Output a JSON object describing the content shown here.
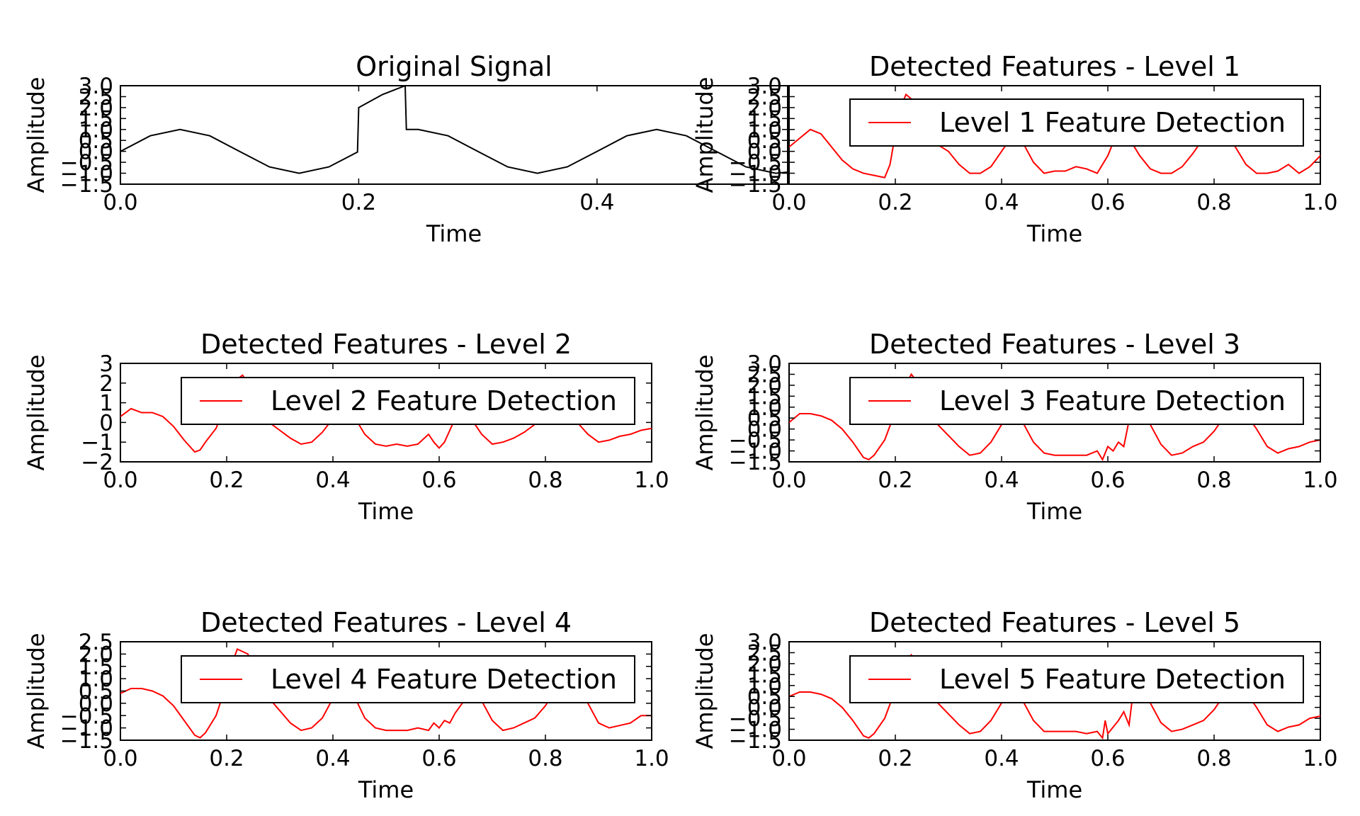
{
  "chart_data": [
    {
      "type": "line",
      "title": "Original Signal",
      "xlabel": "Time",
      "ylabel": "Amplitude",
      "xlim": [
        0,
        0.56
      ],
      "ylim": [
        -1.5,
        3.0
      ],
      "xticks": [
        "0.0",
        "0.2",
        "0.4"
      ],
      "yticks": [
        "−1.5",
        "−1.0",
        "−0.5",
        "0.0",
        "0.5",
        "1.0",
        "1.5",
        "2.0",
        "2.5",
        "3.0"
      ],
      "color": "#000000",
      "legend": "",
      "x": [
        0,
        0.025,
        0.05,
        0.075,
        0.1,
        0.125,
        0.15,
        0.175,
        0.199,
        0.2,
        0.22,
        0.239,
        0.24,
        0.25,
        0.275,
        0.3,
        0.325,
        0.35,
        0.375,
        0.4,
        0.425,
        0.45,
        0.475,
        0.5,
        0.525,
        0.55,
        0.56
      ],
      "y": [
        0.0,
        0.71,
        1.0,
        0.71,
        0.0,
        -0.71,
        -1.0,
        -0.71,
        -0.03,
        2.0,
        2.6,
        3.0,
        1.0,
        1.0,
        0.71,
        0.0,
        -0.71,
        -1.0,
        -0.71,
        0.0,
        0.71,
        1.0,
        0.71,
        0.0,
        -0.71,
        -1.0,
        -0.95
      ]
    },
    {
      "type": "line",
      "title": "Detected Features - Level 1",
      "xlabel": "Time",
      "ylabel": "Amplitude",
      "xlim": [
        0,
        1.0
      ],
      "ylim": [
        -1.5,
        3.0
      ],
      "xticks": [
        "0.0",
        "0.2",
        "0.4",
        "0.6",
        "0.8",
        "1.0"
      ],
      "yticks": [
        "−1.5",
        "−1.0",
        "−0.5",
        "0.0",
        "0.5",
        "1.0",
        "1.5",
        "2.0",
        "2.5",
        "3.0"
      ],
      "color": "#ff0000",
      "legend": "Level 1 Feature Detection",
      "x": [
        0,
        0.02,
        0.04,
        0.06,
        0.08,
        0.1,
        0.12,
        0.14,
        0.16,
        0.18,
        0.19,
        0.2,
        0.21,
        0.22,
        0.24,
        0.26,
        0.28,
        0.3,
        0.32,
        0.34,
        0.36,
        0.38,
        0.4,
        0.42,
        0.44,
        0.46,
        0.48,
        0.5,
        0.52,
        0.54,
        0.56,
        0.58,
        0.6,
        0.62,
        0.64,
        0.66,
        0.68,
        0.7,
        0.72,
        0.74,
        0.76,
        0.78,
        0.8,
        0.82,
        0.84,
        0.86,
        0.88,
        0.9,
        0.92,
        0.94,
        0.96,
        0.98,
        1.0
      ],
      "y": [
        0.2,
        0.6,
        1.0,
        0.8,
        0.2,
        -0.4,
        -0.8,
        -1.0,
        -1.1,
        -1.2,
        -0.6,
        0.8,
        2.0,
        2.6,
        2.2,
        1.2,
        0.3,
        0.0,
        -0.6,
        -1.0,
        -1.0,
        -0.7,
        0.0,
        0.7,
        0.4,
        -0.5,
        -1.0,
        -0.9,
        -0.9,
        -0.7,
        -0.8,
        -1.0,
        -0.2,
        1.0,
        0.6,
        -0.2,
        -0.8,
        -1.0,
        -1.0,
        -0.7,
        -0.1,
        0.6,
        1.0,
        0.8,
        0.2,
        -0.6,
        -1.0,
        -1.0,
        -0.9,
        -0.6,
        -1.0,
        -0.7,
        -0.2
      ]
    },
    {
      "type": "line",
      "title": "Detected Features - Level 2",
      "xlabel": "Time",
      "ylabel": "Amplitude",
      "xlim": [
        0,
        1.0
      ],
      "ylim": [
        -2,
        3
      ],
      "xticks": [
        "0.0",
        "0.2",
        "0.4",
        "0.6",
        "0.8",
        "1.0"
      ],
      "yticks": [
        "−2",
        "−1",
        "0",
        "1",
        "2",
        "3"
      ],
      "color": "#ff0000",
      "legend": "Level 2 Feature Detection",
      "x": [
        0,
        0.02,
        0.04,
        0.06,
        0.08,
        0.1,
        0.12,
        0.14,
        0.15,
        0.16,
        0.18,
        0.2,
        0.22,
        0.23,
        0.24,
        0.26,
        0.28,
        0.3,
        0.32,
        0.34,
        0.36,
        0.38,
        0.4,
        0.42,
        0.44,
        0.46,
        0.48,
        0.5,
        0.52,
        0.54,
        0.56,
        0.58,
        0.59,
        0.6,
        0.61,
        0.62,
        0.64,
        0.66,
        0.68,
        0.7,
        0.72,
        0.74,
        0.76,
        0.78,
        0.8,
        0.82,
        0.84,
        0.86,
        0.88,
        0.9,
        0.92,
        0.94,
        0.96,
        0.98,
        1.0
      ],
      "y": [
        0.3,
        0.7,
        0.5,
        0.5,
        0.3,
        -0.2,
        -0.9,
        -1.5,
        -1.4,
        -1.0,
        -0.3,
        1.0,
        2.2,
        2.4,
        2.0,
        1.0,
        0.0,
        -0.4,
        -0.8,
        -1.1,
        -1.0,
        -0.5,
        0.2,
        0.8,
        0.3,
        -0.6,
        -1.1,
        -1.2,
        -1.1,
        -1.2,
        -1.1,
        -0.6,
        -1.0,
        -1.3,
        -1.0,
        -0.4,
        0.8,
        0.2,
        -0.6,
        -1.1,
        -1.0,
        -0.8,
        -0.5,
        -0.1,
        0.6,
        1.0,
        0.7,
        0.0,
        -0.6,
        -1.0,
        -0.9,
        -0.7,
        -0.6,
        -0.4,
        -0.3
      ]
    },
    {
      "type": "line",
      "title": "Detected Features - Level 3",
      "xlabel": "Time",
      "ylabel": "Amplitude",
      "xlim": [
        0,
        1.0
      ],
      "ylim": [
        -1.5,
        3.0
      ],
      "xticks": [
        "0.0",
        "0.2",
        "0.4",
        "0.6",
        "0.8",
        "1.0"
      ],
      "yticks": [
        "−1.5",
        "−1.0",
        "−0.5",
        "0.0",
        "0.5",
        "1.0",
        "1.5",
        "2.0",
        "2.5",
        "3.0"
      ],
      "color": "#ff0000",
      "legend": "Level 3 Feature Detection",
      "x": [
        0,
        0.02,
        0.04,
        0.06,
        0.08,
        0.1,
        0.12,
        0.14,
        0.15,
        0.16,
        0.18,
        0.2,
        0.22,
        0.23,
        0.24,
        0.26,
        0.28,
        0.3,
        0.32,
        0.34,
        0.36,
        0.38,
        0.4,
        0.42,
        0.44,
        0.46,
        0.48,
        0.5,
        0.52,
        0.54,
        0.56,
        0.58,
        0.59,
        0.6,
        0.61,
        0.62,
        0.63,
        0.64,
        0.66,
        0.68,
        0.7,
        0.72,
        0.74,
        0.76,
        0.78,
        0.8,
        0.82,
        0.84,
        0.86,
        0.88,
        0.9,
        0.92,
        0.94,
        0.96,
        0.98,
        1.0
      ],
      "y": [
        0.3,
        0.7,
        0.7,
        0.6,
        0.4,
        0.0,
        -0.6,
        -1.3,
        -1.4,
        -1.2,
        -0.5,
        0.8,
        2.0,
        2.5,
        2.2,
        1.2,
        0.2,
        -0.3,
        -0.8,
        -1.2,
        -1.1,
        -0.6,
        0.2,
        0.8,
        0.3,
        -0.6,
        -1.1,
        -1.2,
        -1.2,
        -1.2,
        -1.2,
        -1.0,
        -1.4,
        -0.8,
        -1.0,
        -0.6,
        -0.8,
        0.4,
        0.8,
        0.2,
        -0.7,
        -1.2,
        -1.1,
        -0.8,
        -0.6,
        -0.1,
        0.6,
        1.0,
        0.7,
        0.0,
        -0.8,
        -1.1,
        -0.9,
        -0.8,
        -0.6,
        -0.5
      ]
    },
    {
      "type": "line",
      "title": "Detected Features - Level 4",
      "xlabel": "Time",
      "ylabel": "Amplitude",
      "xlim": [
        0,
        1.0
      ],
      "ylim": [
        -1.5,
        2.5
      ],
      "xticks": [
        "0.0",
        "0.2",
        "0.4",
        "0.6",
        "0.8",
        "1.0"
      ],
      "yticks": [
        "−1.5",
        "−1.0",
        "−0.5",
        "0.0",
        "0.5",
        "1.0",
        "1.5",
        "2.0",
        "2.5"
      ],
      "color": "#ff0000",
      "legend": "Level 4 Feature Detection",
      "x": [
        0,
        0.02,
        0.04,
        0.06,
        0.08,
        0.1,
        0.12,
        0.14,
        0.15,
        0.16,
        0.18,
        0.2,
        0.21,
        0.22,
        0.23,
        0.24,
        0.26,
        0.28,
        0.3,
        0.32,
        0.34,
        0.36,
        0.38,
        0.4,
        0.42,
        0.44,
        0.46,
        0.48,
        0.5,
        0.52,
        0.54,
        0.56,
        0.58,
        0.59,
        0.6,
        0.61,
        0.62,
        0.63,
        0.64,
        0.66,
        0.68,
        0.7,
        0.72,
        0.74,
        0.76,
        0.78,
        0.8,
        0.82,
        0.84,
        0.86,
        0.88,
        0.9,
        0.92,
        0.94,
        0.96,
        0.98,
        1.0
      ],
      "y": [
        0.4,
        0.6,
        0.6,
        0.5,
        0.3,
        -0.1,
        -0.7,
        -1.3,
        -1.4,
        -1.2,
        -0.5,
        0.8,
        1.6,
        2.2,
        2.1,
        2.0,
        1.1,
        0.2,
        -0.3,
        -0.8,
        -1.1,
        -1.0,
        -0.6,
        0.2,
        0.8,
        0.3,
        -0.6,
        -1.0,
        -1.1,
        -1.1,
        -1.1,
        -1.0,
        -1.1,
        -0.8,
        -1.0,
        -0.7,
        -0.8,
        -0.4,
        -0.1,
        0.5,
        0.1,
        -0.7,
        -1.1,
        -1.0,
        -0.8,
        -0.6,
        -0.1,
        0.6,
        1.0,
        0.7,
        0.0,
        -0.8,
        -1.0,
        -0.9,
        -0.8,
        -0.5,
        -0.5
      ]
    },
    {
      "type": "line",
      "title": "Detected Features - Level 5",
      "xlabel": "Time",
      "ylabel": "Amplitude",
      "xlim": [
        0,
        1.0
      ],
      "ylim": [
        -1.5,
        3.0
      ],
      "xticks": [
        "0.0",
        "0.2",
        "0.4",
        "0.6",
        "0.8",
        "1.0"
      ],
      "yticks": [
        "−1.5",
        "−1.0",
        "−0.5",
        "0.0",
        "0.5",
        "1.0",
        "1.5",
        "2.0",
        "2.5",
        "3.0"
      ],
      "color": "#ff0000",
      "legend": "Level 5 Feature Detection",
      "x": [
        0,
        0.02,
        0.04,
        0.06,
        0.08,
        0.1,
        0.12,
        0.14,
        0.15,
        0.16,
        0.18,
        0.2,
        0.22,
        0.23,
        0.24,
        0.26,
        0.28,
        0.3,
        0.32,
        0.34,
        0.36,
        0.38,
        0.4,
        0.42,
        0.44,
        0.46,
        0.48,
        0.5,
        0.52,
        0.54,
        0.56,
        0.58,
        0.59,
        0.595,
        0.6,
        0.61,
        0.62,
        0.63,
        0.64,
        0.645,
        0.66,
        0.68,
        0.7,
        0.72,
        0.74,
        0.76,
        0.78,
        0.8,
        0.82,
        0.84,
        0.86,
        0.88,
        0.9,
        0.92,
        0.94,
        0.96,
        0.98,
        1.0
      ],
      "y": [
        0.5,
        0.7,
        0.7,
        0.6,
        0.4,
        0.0,
        -0.6,
        -1.3,
        -1.4,
        -1.2,
        -0.5,
        0.8,
        2.0,
        2.4,
        2.0,
        1.2,
        0.2,
        -0.3,
        -0.8,
        -1.2,
        -1.1,
        -0.6,
        0.2,
        0.8,
        0.3,
        -0.6,
        -1.1,
        -1.1,
        -1.1,
        -1.1,
        -1.2,
        -1.1,
        -1.4,
        -0.6,
        -1.2,
        -0.9,
        -0.6,
        -0.2,
        -0.8,
        0.2,
        0.8,
        0.2,
        -0.7,
        -1.1,
        -1.0,
        -0.8,
        -0.6,
        -0.1,
        0.6,
        1.0,
        0.7,
        0.0,
        -0.8,
        -1.1,
        -0.9,
        -0.8,
        -0.5,
        -0.4
      ]
    }
  ]
}
